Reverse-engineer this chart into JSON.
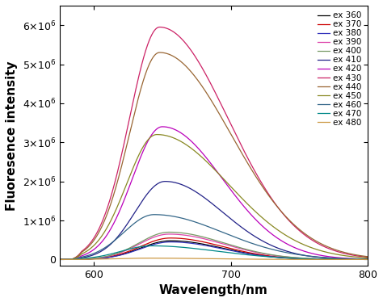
{
  "xlabel": "Wavelength/nm",
  "ylabel": "Fluoresence intensity",
  "xlim": [
    575,
    800
  ],
  "ylim": [
    -150000.0,
    6500000.0
  ],
  "yticks": [
    0,
    1000000.0,
    2000000.0,
    3000000.0,
    4000000.0,
    5000000.0,
    6000000.0
  ],
  "xticks": [
    600,
    700,
    800
  ],
  "series": [
    {
      "label": "ex 360",
      "color": "#000000",
      "peak": 656,
      "amplitude": 480000.0,
      "sl": 22,
      "sr": 38
    },
    {
      "label": "ex 370",
      "color": "#cc0000",
      "peak": 656,
      "amplitude": 550000.0,
      "sl": 22,
      "sr": 38
    },
    {
      "label": "ex 380",
      "color": "#3333bb",
      "peak": 656,
      "amplitude": 450000.0,
      "sl": 22,
      "sr": 38
    },
    {
      "label": "ex 390",
      "color": "#dd44aa",
      "peak": 655,
      "amplitude": 650000.0,
      "sl": 22,
      "sr": 40
    },
    {
      "label": "ex 400",
      "color": "#779966",
      "peak": 655,
      "amplitude": 700000.0,
      "sl": 22,
      "sr": 40
    },
    {
      "label": "ex 410",
      "color": "#222288",
      "peak": 652,
      "amplitude": 2000000.0,
      "sl": 22,
      "sr": 42
    },
    {
      "label": "ex 420",
      "color": "#bb00bb",
      "peak": 650,
      "amplitude": 3400000.0,
      "sl": 22,
      "sr": 44
    },
    {
      "label": "ex 430",
      "color": "#cc2266",
      "peak": 648,
      "amplitude": 5950000.0,
      "sl": 22,
      "sr": 50
    },
    {
      "label": "ex 440",
      "color": "#996633",
      "peak": 648,
      "amplitude": 5300000.0,
      "sl": 22,
      "sr": 52
    },
    {
      "label": "ex 450",
      "color": "#888822",
      "peak": 646,
      "amplitude": 3200000.0,
      "sl": 22,
      "sr": 52
    },
    {
      "label": "ex 460",
      "color": "#336688",
      "peak": 644,
      "amplitude": 1150000.0,
      "sl": 22,
      "sr": 50
    },
    {
      "label": "ex 470",
      "color": "#008888",
      "peak": 642,
      "amplitude": 350000.0,
      "sl": 22,
      "sr": 48
    },
    {
      "label": "ex 480",
      "color": "#cc9944",
      "peak": 640,
      "amplitude": 35000.0,
      "sl": 22,
      "sr": 45
    }
  ],
  "legend_fontsize": 7.5,
  "axis_label_fontsize": 11,
  "tick_fontsize": 9,
  "cutoff": 583
}
